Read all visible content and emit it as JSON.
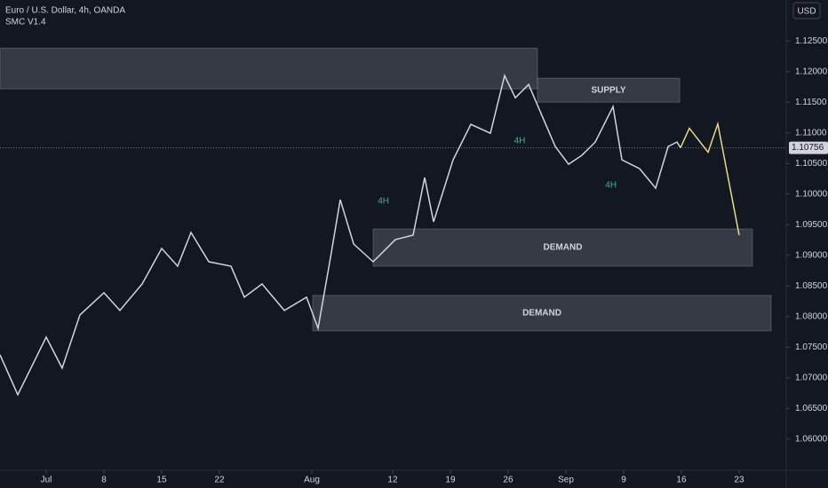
{
  "chart_data": {
    "type": "line",
    "title": "Euro / U.S. Dollar, 4h, OANDA",
    "subtitle": "SMC V1.4",
    "currency_button": "USD",
    "xlim": [
      -4,
      64.077
    ],
    "ylim": [
      1.0549,
      1.1317
    ],
    "xticks": [
      {
        "value": 0,
        "label": "Jul"
      },
      {
        "value": 5,
        "label": "8"
      },
      {
        "value": 10,
        "label": "15"
      },
      {
        "value": 15,
        "label": "22"
      },
      {
        "value": 23,
        "label": "Aug"
      },
      {
        "value": 30,
        "label": "12"
      },
      {
        "value": 35,
        "label": "19"
      },
      {
        "value": 40,
        "label": "26"
      },
      {
        "value": 45,
        "label": "Sep"
      },
      {
        "value": 50,
        "label": "9"
      },
      {
        "value": 55,
        "label": "16"
      },
      {
        "value": 60,
        "label": "23"
      }
    ],
    "yticks": [
      {
        "value": 1.06,
        "label": "1.06000"
      },
      {
        "value": 1.065,
        "label": "1.06500"
      },
      {
        "value": 1.07,
        "label": "1.07000"
      },
      {
        "value": 1.075,
        "label": "1.07500"
      },
      {
        "value": 1.08,
        "label": "1.08000"
      },
      {
        "value": 1.085,
        "label": "1.08500"
      },
      {
        "value": 1.09,
        "label": "1.09000"
      },
      {
        "value": 1.095,
        "label": "1.09500"
      },
      {
        "value": 1.1,
        "label": "1.10000"
      },
      {
        "value": 1.105,
        "label": "1.10500"
      },
      {
        "value": 1.11,
        "label": "1.11000"
      },
      {
        "value": 1.115,
        "label": "1.11500"
      },
      {
        "value": 1.12,
        "label": "1.12000"
      },
      {
        "value": 1.125,
        "label": "1.12500"
      }
    ],
    "last_price": {
      "value": 1.10756,
      "label": "1.10756"
    },
    "series": [
      {
        "color": "#d1d4dc",
        "x": [
          -4,
          -2.46,
          0,
          1.38,
          2.92,
          5,
          6.38,
          8.31,
          10,
          11.38,
          12.54,
          14.08,
          16,
          17.15,
          18.69,
          20.62,
          22.54,
          23.54,
          24.62,
          25.46,
          26.62,
          28.31,
          30.23,
          31.77,
          32.77,
          33.54,
          35.23,
          36.77,
          38.46,
          39.69,
          40.62,
          41.77,
          42.92,
          44.08,
          45.23,
          46.38,
          47.54,
          49.08,
          49.85,
          51.38,
          52.77,
          53.85,
          54.62,
          54.92
        ],
        "values": [
          1.07376,
          1.06724,
          1.07664,
          1.07158,
          1.08027,
          1.08389,
          1.081,
          1.08533,
          1.09112,
          1.08823,
          1.09373,
          1.08895,
          1.08823,
          1.08316,
          1.08533,
          1.081,
          1.08316,
          1.07809,
          1.08967,
          1.09909,
          1.09185,
          1.08895,
          1.09257,
          1.0933,
          1.10271,
          1.09547,
          1.1056,
          1.11139,
          1.10994,
          1.11935,
          1.11573,
          1.11791,
          1.11284,
          1.10777,
          1.10488,
          1.10633,
          1.1085,
          1.11429,
          1.1056,
          1.10415,
          1.10097,
          1.10777,
          1.1085,
          1.10756
        ]
      },
      {
        "color": "#e8d98a",
        "x": [
          54.92,
          55.69,
          57.31,
          58.15,
          60
        ],
        "values": [
          1.10756,
          1.11075,
          1.10684,
          1.11147,
          1.0933
        ]
      }
    ],
    "zones": [
      {
        "x": [
          -4,
          42.54
        ],
        "y": [
          1.11718,
          1.12384
        ]
      },
      {
        "label": "SUPPLY",
        "x": [
          42.54,
          54.85
        ],
        "y": [
          1.11501,
          1.11892
        ]
      },
      {
        "label": "DEMAND",
        "x": [
          28.31,
          61.15
        ],
        "y": [
          1.08823,
          1.09431
        ]
      },
      {
        "label": "DEMAND",
        "x": [
          23.08,
          62.77
        ],
        "y": [
          1.07766,
          1.08345
        ]
      }
    ],
    "annotations": [
      {
        "text": "4H",
        "x": 29.2,
        "y": 1.0988
      },
      {
        "text": "4H",
        "x": 41.0,
        "y": 1.1087
      },
      {
        "text": "4H",
        "x": 48.9,
        "y": 1.1014
      }
    ]
  }
}
